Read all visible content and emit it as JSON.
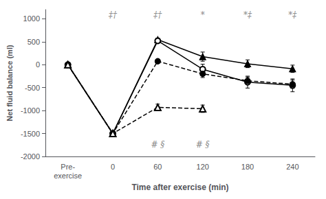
{
  "chart_data": {
    "type": "line",
    "xlabel": "Time after exercise (min)",
    "ylabel": "Net fluid balance (ml)",
    "categories": [
      "Pre-\nexercise",
      "0",
      "60",
      "120",
      "180",
      "240"
    ],
    "ylim": [
      -2000,
      1200
    ],
    "yticks": [
      -2000,
      -1500,
      -1000,
      -500,
      0,
      500,
      1000
    ],
    "grid": false,
    "series": [
      {
        "color": "#000000",
        "marker": "filled_triangle",
        "line_style": "solid",
        "values": [
          0,
          -1500,
          545,
          175,
          20,
          -90
        ],
        "yerr": [
          12,
          40,
          35,
          100,
          85,
          80
        ]
      },
      {
        "color": "#000000",
        "marker": "open_circle",
        "line_style": "solid",
        "values": [
          0,
          -1500,
          520,
          -100,
          -380,
          -450
        ],
        "yerr": [
          15,
          40,
          50,
          110,
          130,
          140
        ]
      },
      {
        "color": "#000000",
        "marker": "filled_circle",
        "line_style": "dashed",
        "values": [
          0,
          -1500,
          75,
          -200,
          -350,
          -425
        ],
        "yerr": [
          15,
          40,
          40,
          80,
          80,
          90
        ]
      },
      {
        "color": "#000000",
        "marker": "open_triangle",
        "line_style": "dashed",
        "values": [
          0,
          -1500,
          -930,
          -960,
          null,
          null
        ],
        "yerr": [
          15,
          40,
          70,
          80,
          null,
          null
        ]
      }
    ],
    "annotations": [
      {
        "x": "0",
        "y": 1080,
        "text": "‡†",
        "color": "#666666"
      },
      {
        "x": "60",
        "y": 1080,
        "text": "‡†",
        "color": "#666666"
      },
      {
        "x": "120",
        "y": 1080,
        "text": "*",
        "color": "#666666"
      },
      {
        "x": "180",
        "y": 1080,
        "text": "*‡",
        "color": "#666666"
      },
      {
        "x": "240",
        "y": 1080,
        "text": "*‡",
        "color": "#666666"
      },
      {
        "x": "60",
        "y": -1620,
        "text": "# §",
        "color": "#666666"
      },
      {
        "x": "120",
        "y": -1620,
        "text": "# §",
        "color": "#666666"
      }
    ]
  }
}
